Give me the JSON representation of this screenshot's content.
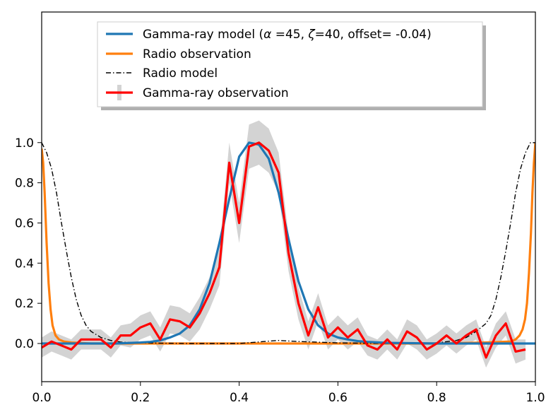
{
  "chart_data": {
    "type": "line",
    "title": "",
    "xlabel": "",
    "ylabel": "",
    "xlim": [
      0.0,
      1.0
    ],
    "ylim": [
      -0.19,
      1.65
    ],
    "grid": false,
    "legend_position": "top-center",
    "x_ticks": [
      "0.0",
      "0.2",
      "0.4",
      "0.6",
      "0.8",
      "1.0"
    ],
    "y_ticks": [
      "0.0",
      "0.2",
      "0.4",
      "0.6",
      "0.8",
      "1.0"
    ],
    "legend": {
      "gamma_model_prefix": "Gamma-ray model (",
      "alpha_symbol": "α",
      "alpha_text": " =45, ",
      "zeta_symbol": "ζ",
      "zeta_text": "=40, offset= -0.04)",
      "radio_observation": "Radio observation",
      "radio_model": "Radio model",
      "gamma_observation": "Gamma-ray observation"
    },
    "series": [
      {
        "name": "Gamma-ray model (α =45, ζ=40, offset= -0.04)",
        "color": "#1f77b4",
        "style": "solid",
        "x": [
          0.0,
          0.05,
          0.1,
          0.15,
          0.2,
          0.22,
          0.24,
          0.26,
          0.28,
          0.3,
          0.32,
          0.34,
          0.36,
          0.38,
          0.4,
          0.42,
          0.44,
          0.46,
          0.48,
          0.5,
          0.52,
          0.54,
          0.56,
          0.58,
          0.6,
          0.62,
          0.64,
          0.66,
          0.7,
          0.8,
          0.9,
          1.0
        ],
        "y": [
          0.0,
          0.0,
          0.0,
          0.0,
          0.005,
          0.008,
          0.015,
          0.03,
          0.05,
          0.09,
          0.17,
          0.3,
          0.5,
          0.72,
          0.93,
          1.0,
          0.99,
          0.92,
          0.75,
          0.52,
          0.31,
          0.17,
          0.09,
          0.05,
          0.03,
          0.02,
          0.012,
          0.008,
          0.003,
          0.0,
          0.0,
          0.0
        ]
      },
      {
        "name": "Radio observation",
        "color": "#ff7f0e",
        "style": "solid",
        "x": [
          0.0,
          0.003,
          0.006,
          0.01,
          0.014,
          0.018,
          0.022,
          0.028,
          0.035,
          0.045,
          0.06,
          0.1,
          0.2,
          0.3,
          0.4,
          0.5,
          0.6,
          0.7,
          0.8,
          0.9,
          0.95,
          0.96,
          0.968,
          0.974,
          0.979,
          0.983,
          0.987,
          0.991,
          0.994,
          0.997,
          1.0
        ],
        "y": [
          0.97,
          0.9,
          0.75,
          0.5,
          0.3,
          0.17,
          0.09,
          0.04,
          0.02,
          0.01,
          0.005,
          0.0,
          0.0,
          0.0,
          0.0,
          0.0,
          0.0,
          0.0,
          0.0,
          0.005,
          0.01,
          0.02,
          0.04,
          0.07,
          0.12,
          0.2,
          0.35,
          0.55,
          0.75,
          0.9,
          1.0
        ]
      },
      {
        "name": "Radio model",
        "color": "#000000",
        "style": "dashdot",
        "x": [
          0.0,
          0.01,
          0.02,
          0.03,
          0.04,
          0.05,
          0.06,
          0.07,
          0.08,
          0.09,
          0.1,
          0.12,
          0.14,
          0.16,
          0.2,
          0.3,
          0.4,
          0.45,
          0.48,
          0.52,
          0.6,
          0.7,
          0.8,
          0.84,
          0.86,
          0.88,
          0.9,
          0.91,
          0.92,
          0.93,
          0.94,
          0.95,
          0.96,
          0.97,
          0.98,
          0.99,
          1.0
        ],
        "y": [
          1.0,
          0.95,
          0.87,
          0.75,
          0.6,
          0.46,
          0.33,
          0.22,
          0.14,
          0.09,
          0.06,
          0.03,
          0.015,
          0.007,
          0.003,
          0.0,
          0.0,
          0.01,
          0.015,
          0.01,
          0.003,
          0.0,
          0.003,
          0.015,
          0.03,
          0.06,
          0.1,
          0.14,
          0.22,
          0.33,
          0.46,
          0.6,
          0.75,
          0.87,
          0.95,
          1.0,
          1.0
        ]
      },
      {
        "name": "Gamma-ray observation",
        "color": "#ff0000",
        "style": "solid",
        "band_color": "#d3d3d3",
        "x": [
          0.0,
          0.02,
          0.04,
          0.06,
          0.08,
          0.1,
          0.12,
          0.14,
          0.16,
          0.18,
          0.2,
          0.22,
          0.24,
          0.26,
          0.28,
          0.3,
          0.32,
          0.34,
          0.36,
          0.38,
          0.4,
          0.42,
          0.44,
          0.46,
          0.48,
          0.5,
          0.52,
          0.54,
          0.56,
          0.58,
          0.6,
          0.62,
          0.64,
          0.66,
          0.68,
          0.7,
          0.72,
          0.74,
          0.76,
          0.78,
          0.8,
          0.82,
          0.84,
          0.86,
          0.88,
          0.9,
          0.92,
          0.94,
          0.96,
          0.98
        ],
        "y": [
          -0.02,
          0.01,
          -0.01,
          -0.03,
          0.02,
          0.02,
          0.02,
          -0.02,
          0.04,
          0.04,
          0.08,
          0.1,
          0.02,
          0.12,
          0.11,
          0.08,
          0.15,
          0.25,
          0.38,
          0.9,
          0.6,
          0.98,
          1.0,
          0.96,
          0.85,
          0.45,
          0.2,
          0.04,
          0.18,
          0.03,
          0.08,
          0.03,
          0.07,
          -0.01,
          -0.03,
          0.02,
          -0.03,
          0.06,
          0.03,
          -0.03,
          0.0,
          0.04,
          0.0,
          0.04,
          0.07,
          -0.07,
          0.04,
          0.1,
          -0.04,
          -0.03
        ],
        "err": [
          0.05,
          0.05,
          0.05,
          0.05,
          0.05,
          0.05,
          0.05,
          0.05,
          0.05,
          0.06,
          0.06,
          0.06,
          0.06,
          0.07,
          0.07,
          0.07,
          0.08,
          0.08,
          0.09,
          0.1,
          0.1,
          0.11,
          0.11,
          0.11,
          0.1,
          0.09,
          0.08,
          0.07,
          0.07,
          0.06,
          0.06,
          0.06,
          0.06,
          0.05,
          0.05,
          0.05,
          0.05,
          0.06,
          0.06,
          0.05,
          0.05,
          0.05,
          0.05,
          0.05,
          0.05,
          0.05,
          0.06,
          0.06,
          0.06,
          0.05
        ]
      }
    ]
  }
}
